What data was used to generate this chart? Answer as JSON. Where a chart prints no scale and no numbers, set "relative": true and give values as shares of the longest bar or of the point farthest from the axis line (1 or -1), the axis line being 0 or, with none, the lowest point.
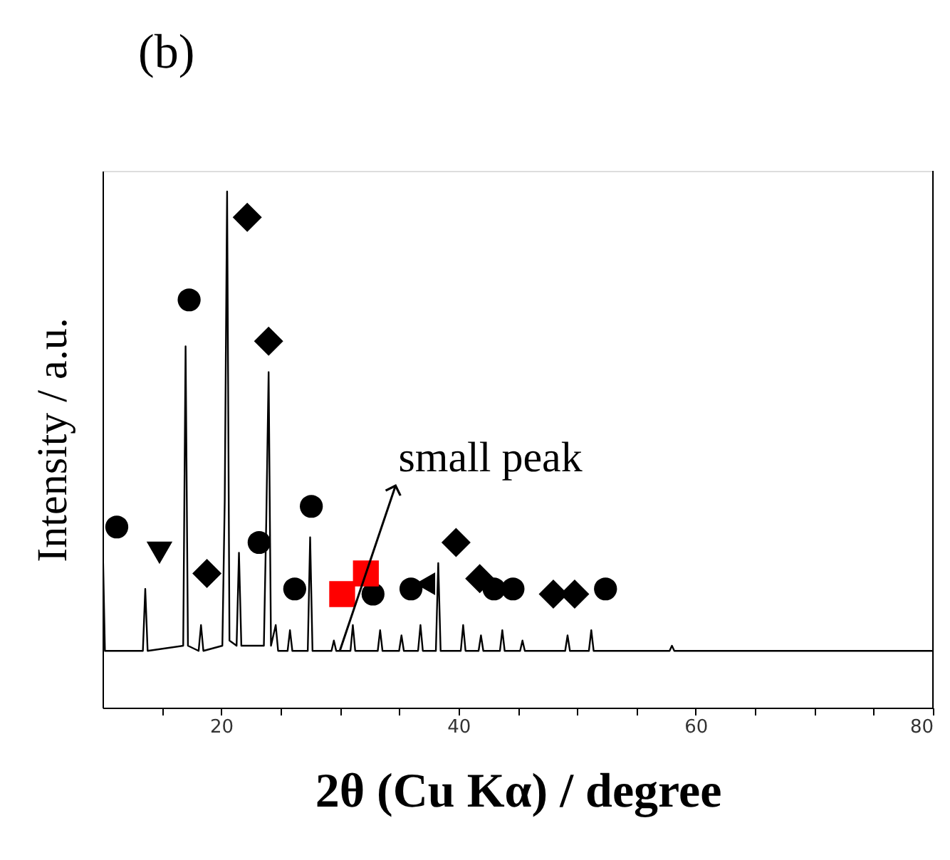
{
  "chart_data": {
    "type": "line",
    "title": "(b)",
    "xlabel": "2θ (Cu Kα) / degree",
    "ylabel": "Intensity / a.u.",
    "relative": true,
    "xlim": [
      10,
      80
    ],
    "xticks": [
      {
        "value": 15,
        "label": null
      },
      20,
      {
        "value": 25,
        "label": null
      },
      {
        "value": 30,
        "label": null
      },
      {
        "value": 35,
        "label": null
      },
      40,
      {
        "value": 45,
        "label": null
      },
      {
        "value": 50,
        "label": null
      },
      {
        "value": 55,
        "label": null
      },
      60,
      {
        "value": 65,
        "label": null
      },
      {
        "value": 70,
        "label": null
      },
      {
        "value": 75,
        "label": null
      },
      80
    ],
    "grid": false,
    "annotations": [
      {
        "text": "small peak",
        "x": 30.0,
        "y": 0.11
      }
    ],
    "series": [
      {
        "color": "#000000",
        "marker": "none",
        "line_style": "solid",
        "x": [
          10,
          10.05,
          10.2,
          13.4,
          13.6,
          13.8,
          16.8,
          17.0,
          17.2,
          18.1,
          18.3,
          18.5,
          20.1,
          20.3,
          20.5,
          20.7,
          21.3,
          21.5,
          21.7,
          23.6,
          23.8,
          24.0,
          24.2,
          24.6,
          24.8,
          25.6,
          25.8,
          26.0,
          27.3,
          27.5,
          27.7,
          29.3,
          29.5,
          29.7,
          30.9,
          31.1,
          31.3,
          33.2,
          33.4,
          33.6,
          35.0,
          35.2,
          35.4,
          36.6,
          36.8,
          37.0,
          38.1,
          38.3,
          38.5,
          40.2,
          40.4,
          40.6,
          41.7,
          41.9,
          42.1,
          43.5,
          43.7,
          43.9,
          45.2,
          45.4,
          45.6,
          49.0,
          49.2,
          49.4,
          51.0,
          51.2,
          51.4,
          57.8,
          58.0,
          58.2,
          80
        ],
        "values": [
          0.11,
          0.28,
          0.11,
          0.11,
          0.23,
          0.11,
          0.12,
          0.7,
          0.12,
          0.11,
          0.16,
          0.11,
          0.12,
          0.4,
          1.0,
          0.13,
          0.12,
          0.3,
          0.12,
          0.12,
          0.36,
          0.65,
          0.12,
          0.16,
          0.11,
          0.11,
          0.15,
          0.11,
          0.11,
          0.33,
          0.11,
          0.11,
          0.13,
          0.11,
          0.11,
          0.16,
          0.11,
          0.11,
          0.15,
          0.11,
          0.11,
          0.14,
          0.11,
          0.11,
          0.16,
          0.11,
          0.11,
          0.28,
          0.11,
          0.11,
          0.16,
          0.11,
          0.11,
          0.14,
          0.11,
          0.11,
          0.15,
          0.11,
          0.11,
          0.13,
          0.11,
          0.11,
          0.14,
          0.11,
          0.11,
          0.15,
          0.11,
          0.11,
          0.12,
          0.11,
          0.11
        ]
      },
      {
        "type": "scatter",
        "color": "#000000",
        "marker": "circle",
        "x": [
          17.3,
          23.2,
          27.6,
          26.2,
          32.8,
          36.0,
          44.6,
          52.4
        ],
        "values": [
          0.79,
          0.32,
          0.39,
          0.23,
          0.22,
          0.23,
          0.23,
          0.23
        ]
      },
      {
        "type": "scatter",
        "color": "#000000",
        "marker": "diamond",
        "x": [
          18.8,
          22.2,
          24.0,
          39.8,
          41.8,
          48.0,
          49.8
        ],
        "values": [
          0.26,
          0.95,
          0.71,
          0.32,
          0.25,
          0.22,
          0.22
        ]
      },
      {
        "type": "scatter",
        "color": "#000000",
        "marker": "triangle-down",
        "x": [
          14.8
        ],
        "values": [
          0.3
        ]
      },
      {
        "type": "scatter",
        "color": "#000000",
        "marker": "triangle-left",
        "x": [
          37.2
        ],
        "values": [
          0.24
        ]
      },
      {
        "type": "scatter",
        "color": "#000000",
        "marker": "circle",
        "x": [
          11.2,
          43.0
        ],
        "values": [
          0.35,
          0.23
        ]
      },
      {
        "type": "scatter",
        "color": "#ff0000",
        "marker": "square",
        "x": [
          30.2,
          32.2
        ],
        "values": [
          0.22,
          0.26
        ]
      }
    ]
  }
}
